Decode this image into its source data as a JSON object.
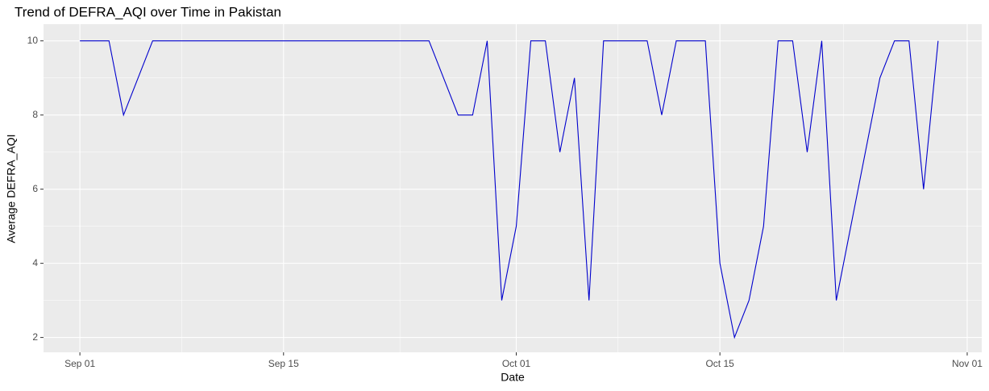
{
  "chart_data": {
    "type": "line",
    "title": "Trend of DEFRA_AQI over Time in Pakistan",
    "x_label": "Date",
    "y_label": "Average DEFRA_AQI",
    "x": [
      0,
      1,
      2,
      3,
      4,
      5,
      6,
      7,
      8,
      9,
      10,
      11,
      12,
      13,
      14,
      15,
      16,
      17,
      18,
      19,
      20,
      21,
      22,
      23,
      24,
      25,
      26,
      27,
      28,
      29,
      30,
      31,
      32,
      33,
      34,
      35,
      36,
      37,
      38,
      39,
      40,
      41,
      42,
      43,
      44,
      45,
      46,
      47,
      48,
      49,
      50,
      51,
      52,
      53,
      54,
      55,
      56,
      57,
      58,
      59
    ],
    "series": [
      {
        "name": "DEFRA_AQI",
        "color": "#0000cd",
        "values": [
          10,
          10,
          10,
          8,
          9,
          10,
          10,
          10,
          10,
          10,
          10,
          10,
          10,
          10,
          10,
          10,
          10,
          10,
          10,
          10,
          10,
          10,
          10,
          10,
          10,
          9,
          8,
          8,
          10,
          3,
          5,
          10,
          10,
          7,
          9,
          3,
          10,
          10,
          10,
          10,
          8,
          10,
          10,
          10,
          4,
          2,
          3,
          5,
          10,
          10,
          7,
          10,
          3,
          5,
          7,
          9,
          10,
          10,
          6,
          10
        ]
      }
    ],
    "xlim": [
      -2.5,
      62
    ],
    "ylim": [
      1.6,
      10.45
    ],
    "xticks": [
      {
        "value": 0,
        "label": "Sep 01"
      },
      {
        "value": 14,
        "label": "Sep 15"
      },
      {
        "value": 30,
        "label": "Oct 01"
      },
      {
        "value": 44,
        "label": "Oct 15"
      },
      {
        "value": 61,
        "label": "Nov 01"
      }
    ],
    "yticks": [
      2,
      4,
      6,
      8,
      10
    ],
    "grid": true
  }
}
